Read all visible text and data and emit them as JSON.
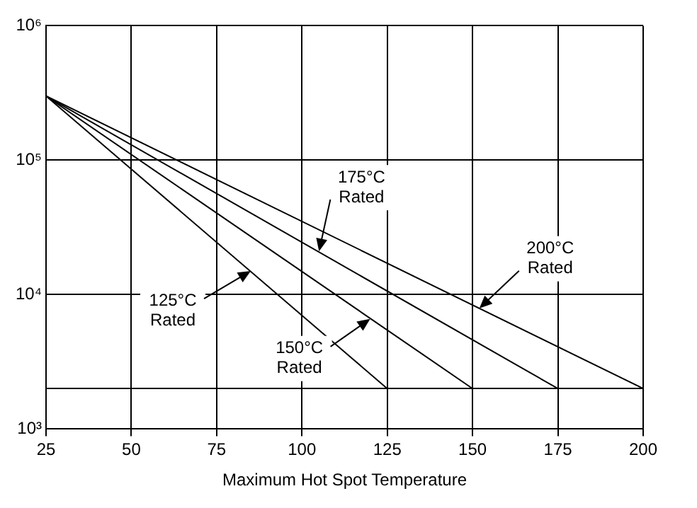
{
  "chart_data": {
    "type": "line",
    "xlabel": "Maximum Hot Spot Temperature",
    "log": "y",
    "grid": true,
    "legend": false,
    "marker": "none",
    "line_style": "solid",
    "xlim": [
      25,
      200
    ],
    "xticks": [
      25,
      50,
      75,
      100,
      125,
      150,
      175,
      200
    ],
    "ylim": [
      1000,
      1000000
    ],
    "yticks": [
      {
        "value": 1000,
        "label": "10³"
      },
      {
        "value": 2000,
        "label": null
      },
      {
        "value": 10000,
        "label": "10⁴"
      },
      {
        "value": 100000,
        "label": "10⁵"
      },
      {
        "value": 1000000,
        "label": "10⁶"
      }
    ],
    "series": [
      {
        "color": "#000000",
        "x": [
          25,
          125
        ],
        "values": [
          300000,
          2000
        ]
      },
      {
        "color": "#000000",
        "x": [
          25,
          150
        ],
        "values": [
          300000,
          2000
        ]
      },
      {
        "color": "#000000",
        "x": [
          25,
          175
        ],
        "values": [
          300000,
          2000
        ]
      },
      {
        "color": "#000000",
        "x": [
          25,
          200
        ],
        "values": [
          300000,
          2000
        ]
      }
    ],
    "annotations": [
      {
        "text": "125°C Rated",
        "x": 85,
        "y": 15000
      },
      {
        "text": "150°C Rated",
        "x": 120,
        "y": 6600
      },
      {
        "text": "175°C Rated",
        "x": 105,
        "y": 21000
      },
      {
        "text": "200°C Rated",
        "x": 152,
        "y": 7900
      }
    ]
  }
}
